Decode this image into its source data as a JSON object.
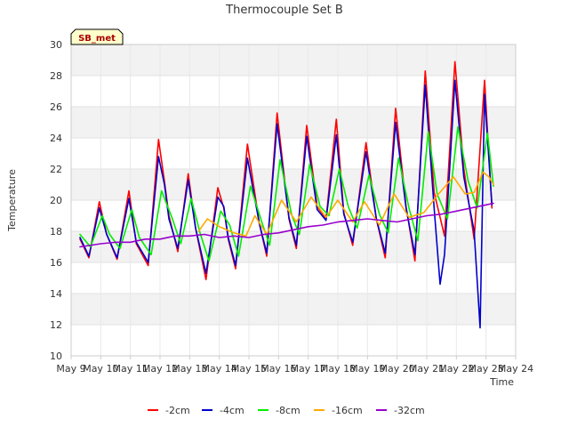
{
  "chart_data": {
    "type": "line",
    "title": "Thermocouple Set B",
    "xlabel": "Time",
    "ylabel": "Temperature",
    "ylim": [
      10,
      30
    ],
    "yticks": [
      10,
      12,
      14,
      16,
      18,
      20,
      22,
      24,
      26,
      28,
      30
    ],
    "xlim": [
      9,
      24
    ],
    "xticks": [
      9,
      10,
      11,
      12,
      13,
      14,
      15,
      16,
      17,
      18,
      19,
      20,
      21,
      22,
      23,
      24
    ],
    "xtick_labels": [
      "May 9",
      "May 10",
      "May 11",
      "May 12",
      "May 13",
      "May 14",
      "May 15",
      "May 16",
      "May 17",
      "May 18",
      "May 19",
      "May 20",
      "May 21",
      "May 22",
      "May 23",
      "May 24"
    ],
    "grid": true,
    "legend_position": "bottom-center",
    "annotation": "SB_met",
    "series": [
      {
        "name": "-2cm",
        "color": "#ff0000",
        "x": [
          9.3,
          9.6,
          9.95,
          10.2,
          10.55,
          10.95,
          11.2,
          11.6,
          11.95,
          12.15,
          12.3,
          12.6,
          12.95,
          13.2,
          13.55,
          13.95,
          14.15,
          14.3,
          14.55,
          14.95,
          15.35,
          15.6,
          15.95,
          16.35,
          16.6,
          16.95,
          17.3,
          17.6,
          17.95,
          18.2,
          18.5,
          18.95,
          19.3,
          19.6,
          19.95,
          20.3,
          20.6,
          20.95,
          21.25,
          21.6,
          21.95,
          22.25,
          22.6,
          22.95,
          23.2
        ],
        "y": [
          17.5,
          16.3,
          19.9,
          17.8,
          16.2,
          20.6,
          17.2,
          15.8,
          23.9,
          21.2,
          19.0,
          16.7,
          21.7,
          18.2,
          14.9,
          20.8,
          19.5,
          17.5,
          15.6,
          23.6,
          18.5,
          16.4,
          25.6,
          18.8,
          16.9,
          24.8,
          19.6,
          18.8,
          25.2,
          19.2,
          17.1,
          23.7,
          18.8,
          16.3,
          25.9,
          19.6,
          16.1,
          28.3,
          20.5,
          17.7,
          28.9,
          22.0,
          17.5,
          27.7,
          19.5
        ]
      },
      {
        "name": "-4cm",
        "color": "#0000cc",
        "x": [
          9.3,
          9.6,
          9.95,
          10.2,
          10.55,
          10.95,
          11.2,
          11.6,
          11.95,
          12.15,
          12.3,
          12.6,
          12.95,
          13.2,
          13.55,
          13.95,
          14.15,
          14.3,
          14.55,
          14.95,
          15.35,
          15.6,
          15.95,
          16.35,
          16.6,
          16.95,
          17.3,
          17.6,
          17.95,
          18.2,
          18.5,
          18.95,
          19.3,
          19.6,
          19.95,
          20.3,
          20.6,
          20.95,
          21.25,
          21.45,
          21.6,
          21.95,
          22.25,
          22.6,
          22.8,
          22.95,
          23.2
        ],
        "y": [
          17.6,
          16.4,
          19.5,
          17.8,
          16.3,
          20.1,
          17.3,
          16.0,
          22.8,
          21.0,
          18.8,
          16.9,
          21.3,
          18.2,
          15.3,
          20.2,
          19.6,
          17.6,
          15.8,
          22.7,
          18.5,
          16.6,
          24.9,
          18.9,
          17.1,
          24.1,
          19.4,
          18.7,
          24.2,
          19.1,
          17.3,
          23.1,
          18.8,
          16.6,
          25.0,
          19.5,
          16.5,
          27.4,
          19.5,
          14.6,
          16.5,
          27.7,
          21.5,
          18.0,
          11.8,
          26.8,
          19.7
        ]
      },
      {
        "name": "-8cm",
        "color": "#00ee00",
        "x": [
          9.3,
          9.65,
          10.05,
          10.3,
          10.65,
          11.05,
          11.3,
          11.7,
          12.05,
          12.4,
          12.7,
          13.05,
          13.35,
          13.65,
          14.05,
          14.35,
          14.65,
          15.05,
          15.45,
          15.7,
          16.05,
          16.45,
          16.7,
          17.05,
          17.4,
          17.7,
          18.05,
          18.35,
          18.65,
          19.05,
          19.4,
          19.7,
          20.05,
          20.4,
          20.7,
          21.05,
          21.35,
          21.7,
          22.05,
          22.4,
          22.7,
          23.05,
          23.25
        ],
        "y": [
          17.8,
          17.0,
          19.0,
          17.8,
          16.9,
          19.4,
          17.6,
          16.5,
          20.6,
          18.9,
          17.2,
          20.1,
          17.9,
          16.1,
          19.3,
          18.4,
          16.4,
          20.9,
          18.5,
          17.1,
          22.6,
          19.0,
          17.8,
          22.3,
          19.6,
          19.0,
          22.0,
          19.6,
          18.2,
          21.6,
          19.1,
          17.9,
          22.7,
          19.5,
          17.4,
          24.4,
          20.4,
          18.8,
          24.7,
          21.2,
          19.5,
          24.3,
          20.9
        ]
      },
      {
        "name": "-16cm",
        "color": "#ffaa00",
        "x": [
          13.3,
          13.6,
          14.0,
          14.5,
          14.9,
          15.2,
          15.6,
          16.1,
          16.6,
          17.1,
          17.6,
          18.0,
          18.5,
          18.9,
          19.4,
          19.9,
          20.4,
          20.9,
          21.4,
          21.9,
          22.3,
          22.6,
          22.9,
          23.1,
          23.25
        ],
        "y": [
          18.0,
          18.8,
          18.3,
          17.9,
          17.7,
          19.0,
          17.8,
          20.0,
          18.6,
          20.2,
          18.9,
          20.0,
          18.6,
          19.9,
          18.4,
          20.4,
          18.9,
          19.2,
          20.4,
          21.5,
          20.4,
          20.5,
          21.8,
          21.5,
          21.0
        ]
      },
      {
        "name": "-32cm",
        "color": "#9900cc",
        "x": [
          9.3,
          10.0,
          10.5,
          11.0,
          11.5,
          12.0,
          12.5,
          13.0,
          13.5,
          14.0,
          14.5,
          15.0,
          15.5,
          16.0,
          16.5,
          17.0,
          17.5,
          18.0,
          18.5,
          19.0,
          19.5,
          20.0,
          20.5,
          21.0,
          21.5,
          22.0,
          22.5,
          23.0,
          23.25
        ],
        "y": [
          17.0,
          17.2,
          17.3,
          17.3,
          17.5,
          17.5,
          17.7,
          17.7,
          17.8,
          17.6,
          17.7,
          17.6,
          17.8,
          17.9,
          18.1,
          18.3,
          18.4,
          18.6,
          18.7,
          18.8,
          18.7,
          18.6,
          18.8,
          19.0,
          19.1,
          19.3,
          19.5,
          19.7,
          19.8
        ]
      }
    ]
  }
}
